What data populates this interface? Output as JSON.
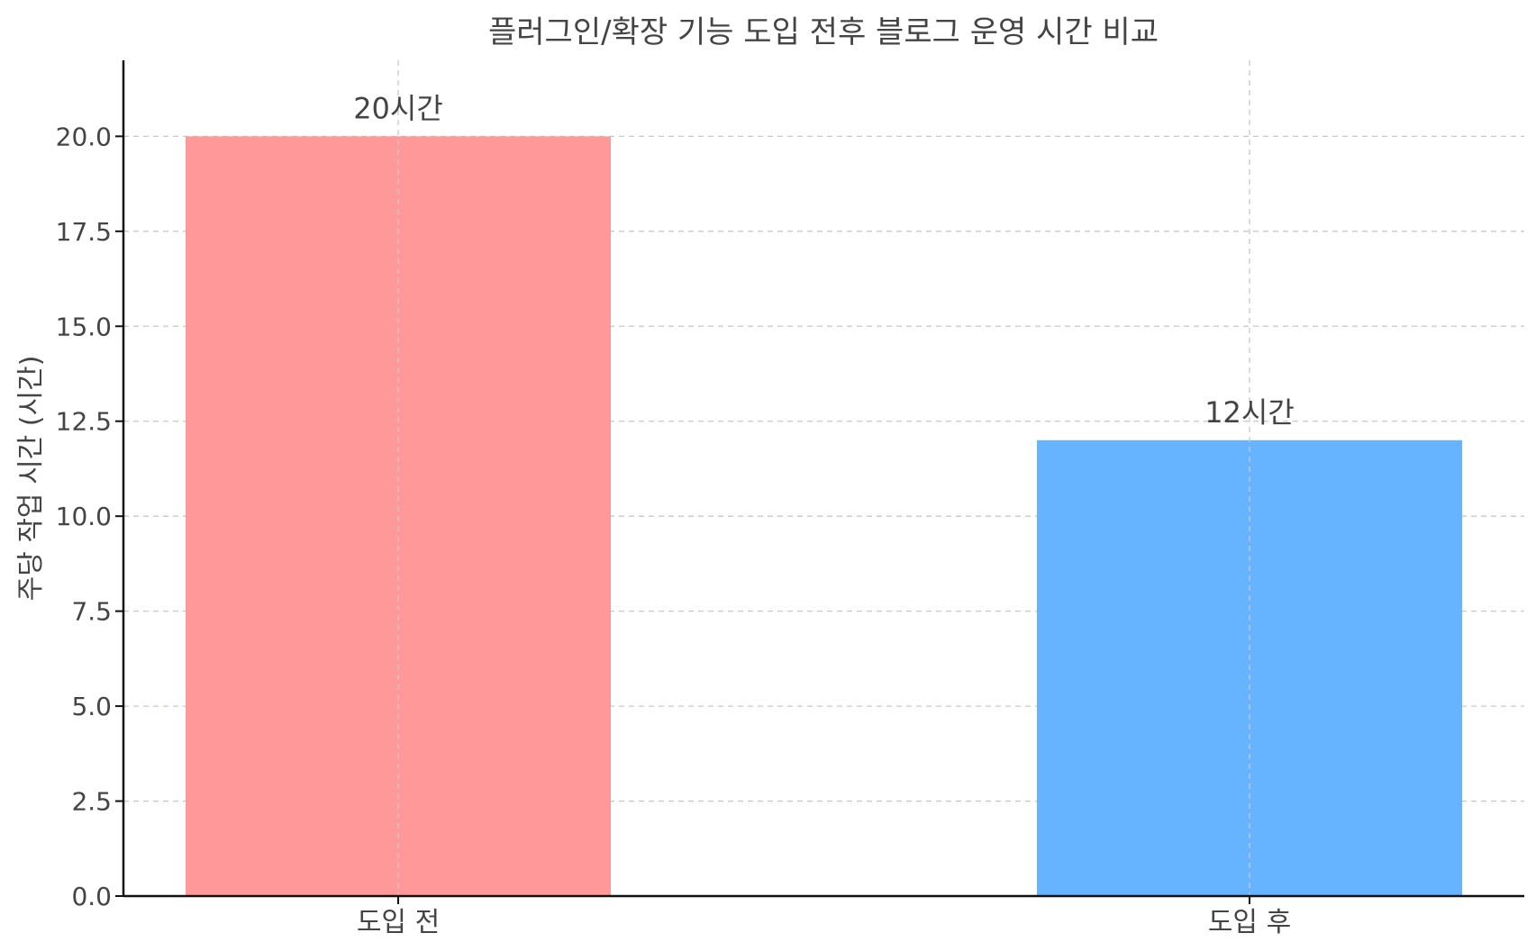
{
  "chart_data": {
    "type": "bar",
    "title": "플러그인/확장 기능 도입 전후 블로그 운영 시간 비교",
    "xlabel": "",
    "ylabel": "주당 작업 시간 (시간)",
    "categories": [
      "도입 전",
      "도입 후"
    ],
    "values": [
      20,
      12
    ],
    "data_labels": [
      "20시간",
      "12시간"
    ],
    "colors": [
      "#ff9999",
      "#66b3ff"
    ],
    "ylim": [
      0,
      22
    ],
    "yticks": [
      0.0,
      2.5,
      5.0,
      7.5,
      10.0,
      12.5,
      15.0,
      17.5,
      20.0
    ],
    "ytick_labels": [
      "0.0",
      "2.5",
      "5.0",
      "7.5",
      "10.0",
      "12.5",
      "15.0",
      "17.5",
      "20.0"
    ],
    "grid": true,
    "grid_style": "dashed",
    "legend": false
  }
}
